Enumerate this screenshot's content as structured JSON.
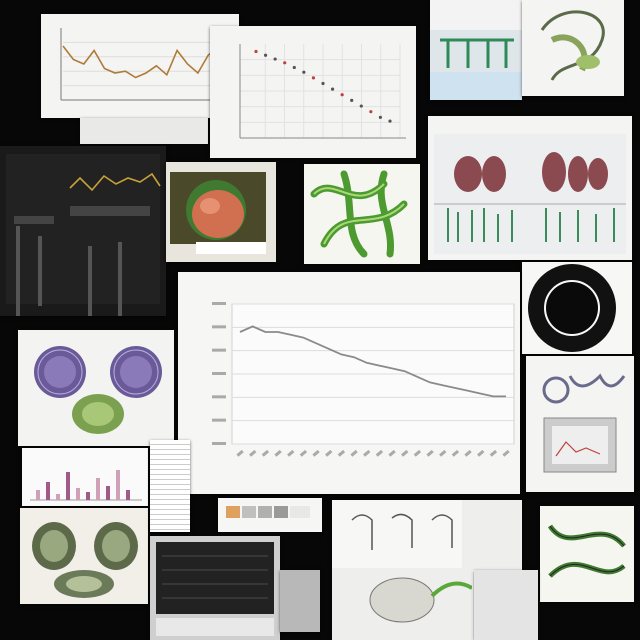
{
  "collage": {
    "description_items": [
      "line-chart-top-left",
      "scatter-chart-top-center",
      "botanical-diagram-top-right",
      "dark-oscilloscope-panel",
      "fruit-photo",
      "green-vine-illustration",
      "plant-anatomy-sheet",
      "main-line-chart",
      "ring-diagram",
      "purple-flower-illustration",
      "bar-chart-sheet",
      "device-screen",
      "seed-pod-illustration",
      "sketch-sheets",
      "vine-sketch"
    ]
  },
  "main_chart": {
    "title": "",
    "xlabel": "",
    "ylabel": ""
  },
  "chart_data": [
    {
      "type": "line",
      "title": "",
      "series": [
        {
          "values": [
            70,
            72,
            70,
            70,
            69,
            68,
            66,
            64,
            62,
            61,
            59,
            58,
            57,
            56,
            54,
            52,
            51,
            50,
            49,
            48,
            47,
            47
          ]
        }
      ],
      "grid": true
    },
    {
      "type": "line",
      "title": "",
      "series": [
        {
          "values": [
            60,
            45,
            40,
            55,
            35,
            30,
            32,
            25,
            30,
            38,
            28,
            55,
            40,
            30,
            50,
            58,
            35
          ]
        }
      ]
    },
    {
      "type": "scatter",
      "title": "",
      "series": [
        {
          "values": [
            92,
            88,
            84,
            80,
            75,
            70,
            64,
            58,
            52,
            46,
            40,
            34,
            28,
            22,
            18
          ]
        }
      ]
    }
  ],
  "colors": {
    "background": "#070707",
    "paper": "#f4f4f2",
    "line_gray": "#8a8a8a",
    "line_brown": "#b07a3a",
    "leaf_green": "#5aa83a",
    "flower_purple": "#6a5a9a"
  }
}
